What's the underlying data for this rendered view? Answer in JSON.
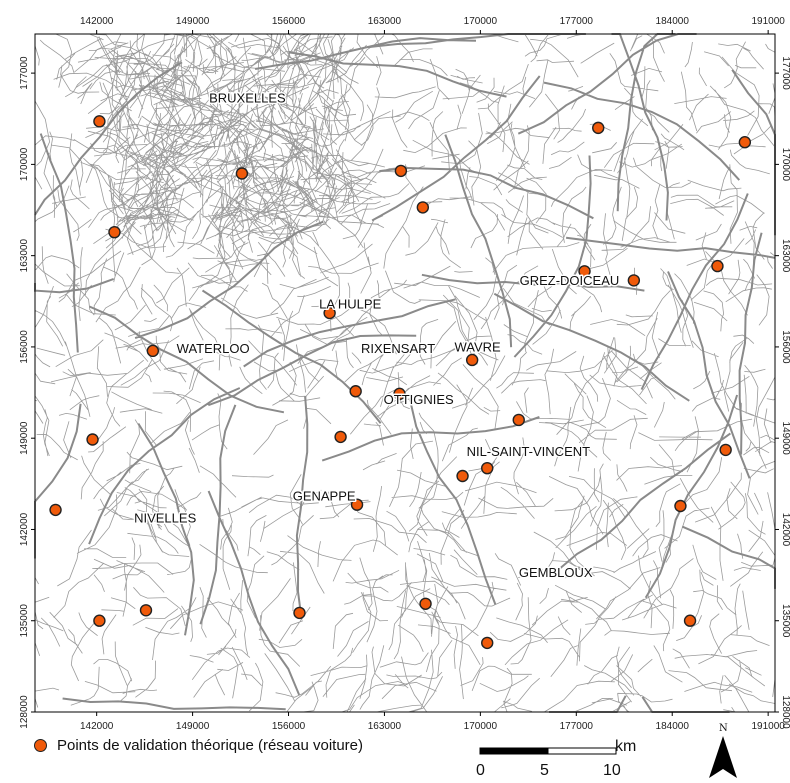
{
  "map": {
    "x_ticks": [
      "142000",
      "149000",
      "156000",
      "163000",
      "170000",
      "177000",
      "184000",
      "191000"
    ],
    "y_ticks": [
      "177000",
      "170000",
      "163000",
      "156000",
      "149000",
      "142000",
      "135000",
      "128000"
    ],
    "x_range": [
      137500,
      191500
    ],
    "y_range": [
      128000,
      180000
    ],
    "colors": {
      "roads": "#9a9a9a",
      "roads_major": "#8a8a8a",
      "point_fill": "#f05a0a",
      "point_stroke": "#222222"
    },
    "cities": [
      {
        "name": "BRUXELLES",
        "x": 153000,
        "y": 175000
      },
      {
        "name": "LA HULPE",
        "x": 160500,
        "y": 159200
      },
      {
        "name": "WATERLOO",
        "x": 150500,
        "y": 155800
      },
      {
        "name": "RIXENSART",
        "x": 164000,
        "y": 155800
      },
      {
        "name": "WAVRE",
        "x": 169800,
        "y": 155900
      },
      {
        "name": "GREZ-DOICEAU",
        "x": 176500,
        "y": 161000
      },
      {
        "name": "OTTIGNIES",
        "x": 165500,
        "y": 151900
      },
      {
        "name": "NIL-SAINT-VINCENT",
        "x": 173500,
        "y": 147900
      },
      {
        "name": "GENAPPE",
        "x": 158600,
        "y": 144500
      },
      {
        "name": "NIVELLES",
        "x": 147000,
        "y": 142800
      },
      {
        "name": "GEMBLOUX",
        "x": 175500,
        "y": 138600
      }
    ],
    "points": [
      {
        "x": 142200,
        "y": 173300
      },
      {
        "x": 152600,
        "y": 169300
      },
      {
        "x": 164200,
        "y": 169500
      },
      {
        "x": 165800,
        "y": 166700
      },
      {
        "x": 143300,
        "y": 164800
      },
      {
        "x": 178600,
        "y": 172800
      },
      {
        "x": 189300,
        "y": 171700
      },
      {
        "x": 177600,
        "y": 161800
      },
      {
        "x": 181200,
        "y": 161100
      },
      {
        "x": 187300,
        "y": 162200
      },
      {
        "x": 159000,
        "y": 158600
      },
      {
        "x": 146100,
        "y": 155700
      },
      {
        "x": 169400,
        "y": 155000
      },
      {
        "x": 160900,
        "y": 152600
      },
      {
        "x": 164100,
        "y": 152400
      },
      {
        "x": 172800,
        "y": 150400
      },
      {
        "x": 159800,
        "y": 149100
      },
      {
        "x": 141700,
        "y": 148900
      },
      {
        "x": 187900,
        "y": 148100
      },
      {
        "x": 170500,
        "y": 146700
      },
      {
        "x": 168700,
        "y": 146100
      },
      {
        "x": 161000,
        "y": 143900
      },
      {
        "x": 184600,
        "y": 143800
      },
      {
        "x": 139000,
        "y": 143500
      },
      {
        "x": 156800,
        "y": 135600
      },
      {
        "x": 166000,
        "y": 136300
      },
      {
        "x": 145600,
        "y": 135800
      },
      {
        "x": 142200,
        "y": 135000
      },
      {
        "x": 185300,
        "y": 135000
      },
      {
        "x": 170500,
        "y": 133300
      }
    ]
  },
  "legend": {
    "label": "Points de validation théorique (réseau voiture)"
  },
  "scale": {
    "unit": "km",
    "ticks": [
      "0",
      "5",
      "10"
    ]
  },
  "north": {
    "label": "N"
  }
}
